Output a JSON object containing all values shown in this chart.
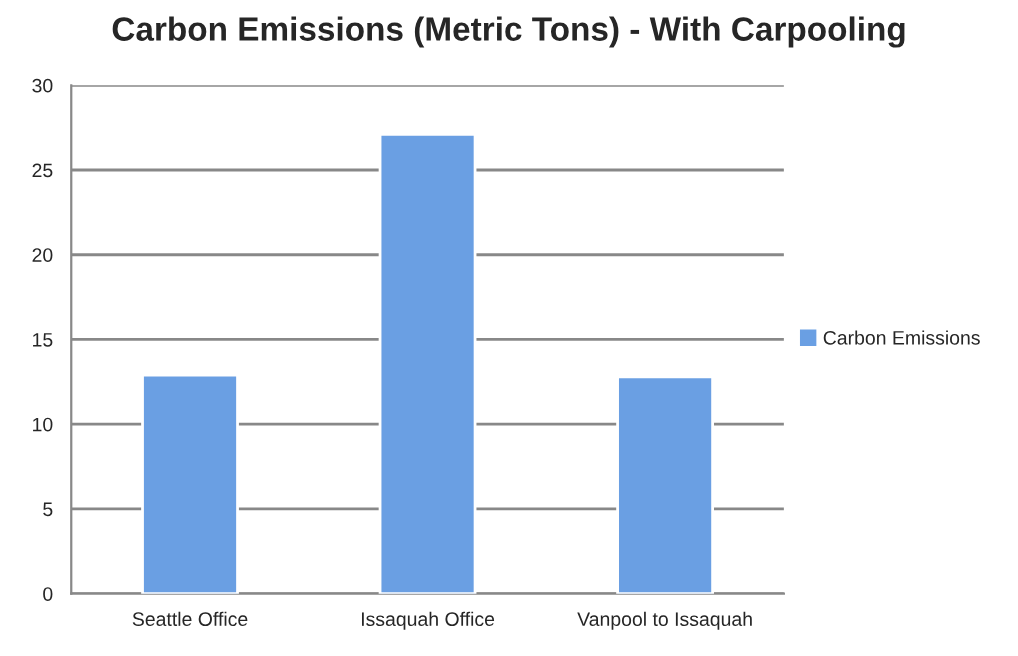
{
  "chart_data": {
    "type": "bar",
    "title": "Carbon Emissions (Metric Tons) - With Carpooling",
    "categories": [
      "Seattle Office",
      "Issaquah Office",
      "Vanpool to Issaquah"
    ],
    "series": [
      {
        "name": "Carbon Emissions",
        "color": "#6a9fe3",
        "values": [
          12.9,
          27.1,
          12.8
        ]
      }
    ],
    "ylim": [
      0,
      30
    ],
    "yticks": [
      0,
      5,
      10,
      15,
      20,
      25,
      30
    ],
    "grid": "y",
    "legend": "right"
  }
}
